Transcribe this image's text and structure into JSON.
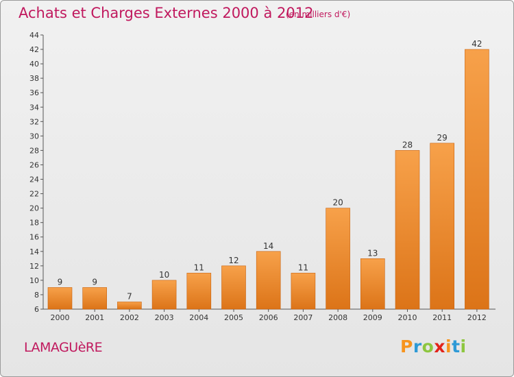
{
  "header": {
    "title": "Achats et Charges Externes 2000 à 2012",
    "subtitle": "(en milliers d'€)"
  },
  "footer": {
    "commune": "LAMAGUèRE",
    "logo_text": "Proxiti",
    "logo_colors": [
      "#f7941d",
      "#2e9ad6",
      "#8dc63f",
      "#e2231a",
      "#f7941d",
      "#2e9ad6",
      "#8dc63f"
    ]
  },
  "colors": {
    "bar_top": "#f7a14a",
    "bar_bottom": "#dc7418",
    "bar_edge": "#c8620e",
    "title": "#c0185d"
  },
  "chart_data": {
    "type": "bar",
    "title": "Achats et Charges Externes 2000 à 2012",
    "subtitle": "(en milliers d'€)",
    "categories": [
      "2000",
      "2001",
      "2002",
      "2003",
      "2004",
      "2005",
      "2006",
      "2007",
      "2008",
      "2009",
      "2010",
      "2011",
      "2012"
    ],
    "values": [
      9,
      9,
      7,
      10,
      11,
      12,
      14,
      11,
      20,
      13,
      28,
      29,
      42
    ],
    "ylim": [
      6,
      44
    ],
    "yticks": [
      6,
      8,
      10,
      12,
      14,
      16,
      18,
      20,
      22,
      24,
      26,
      28,
      30,
      32,
      34,
      36,
      38,
      40,
      42,
      44
    ],
    "grid": false,
    "xlabel": "",
    "ylabel": ""
  }
}
